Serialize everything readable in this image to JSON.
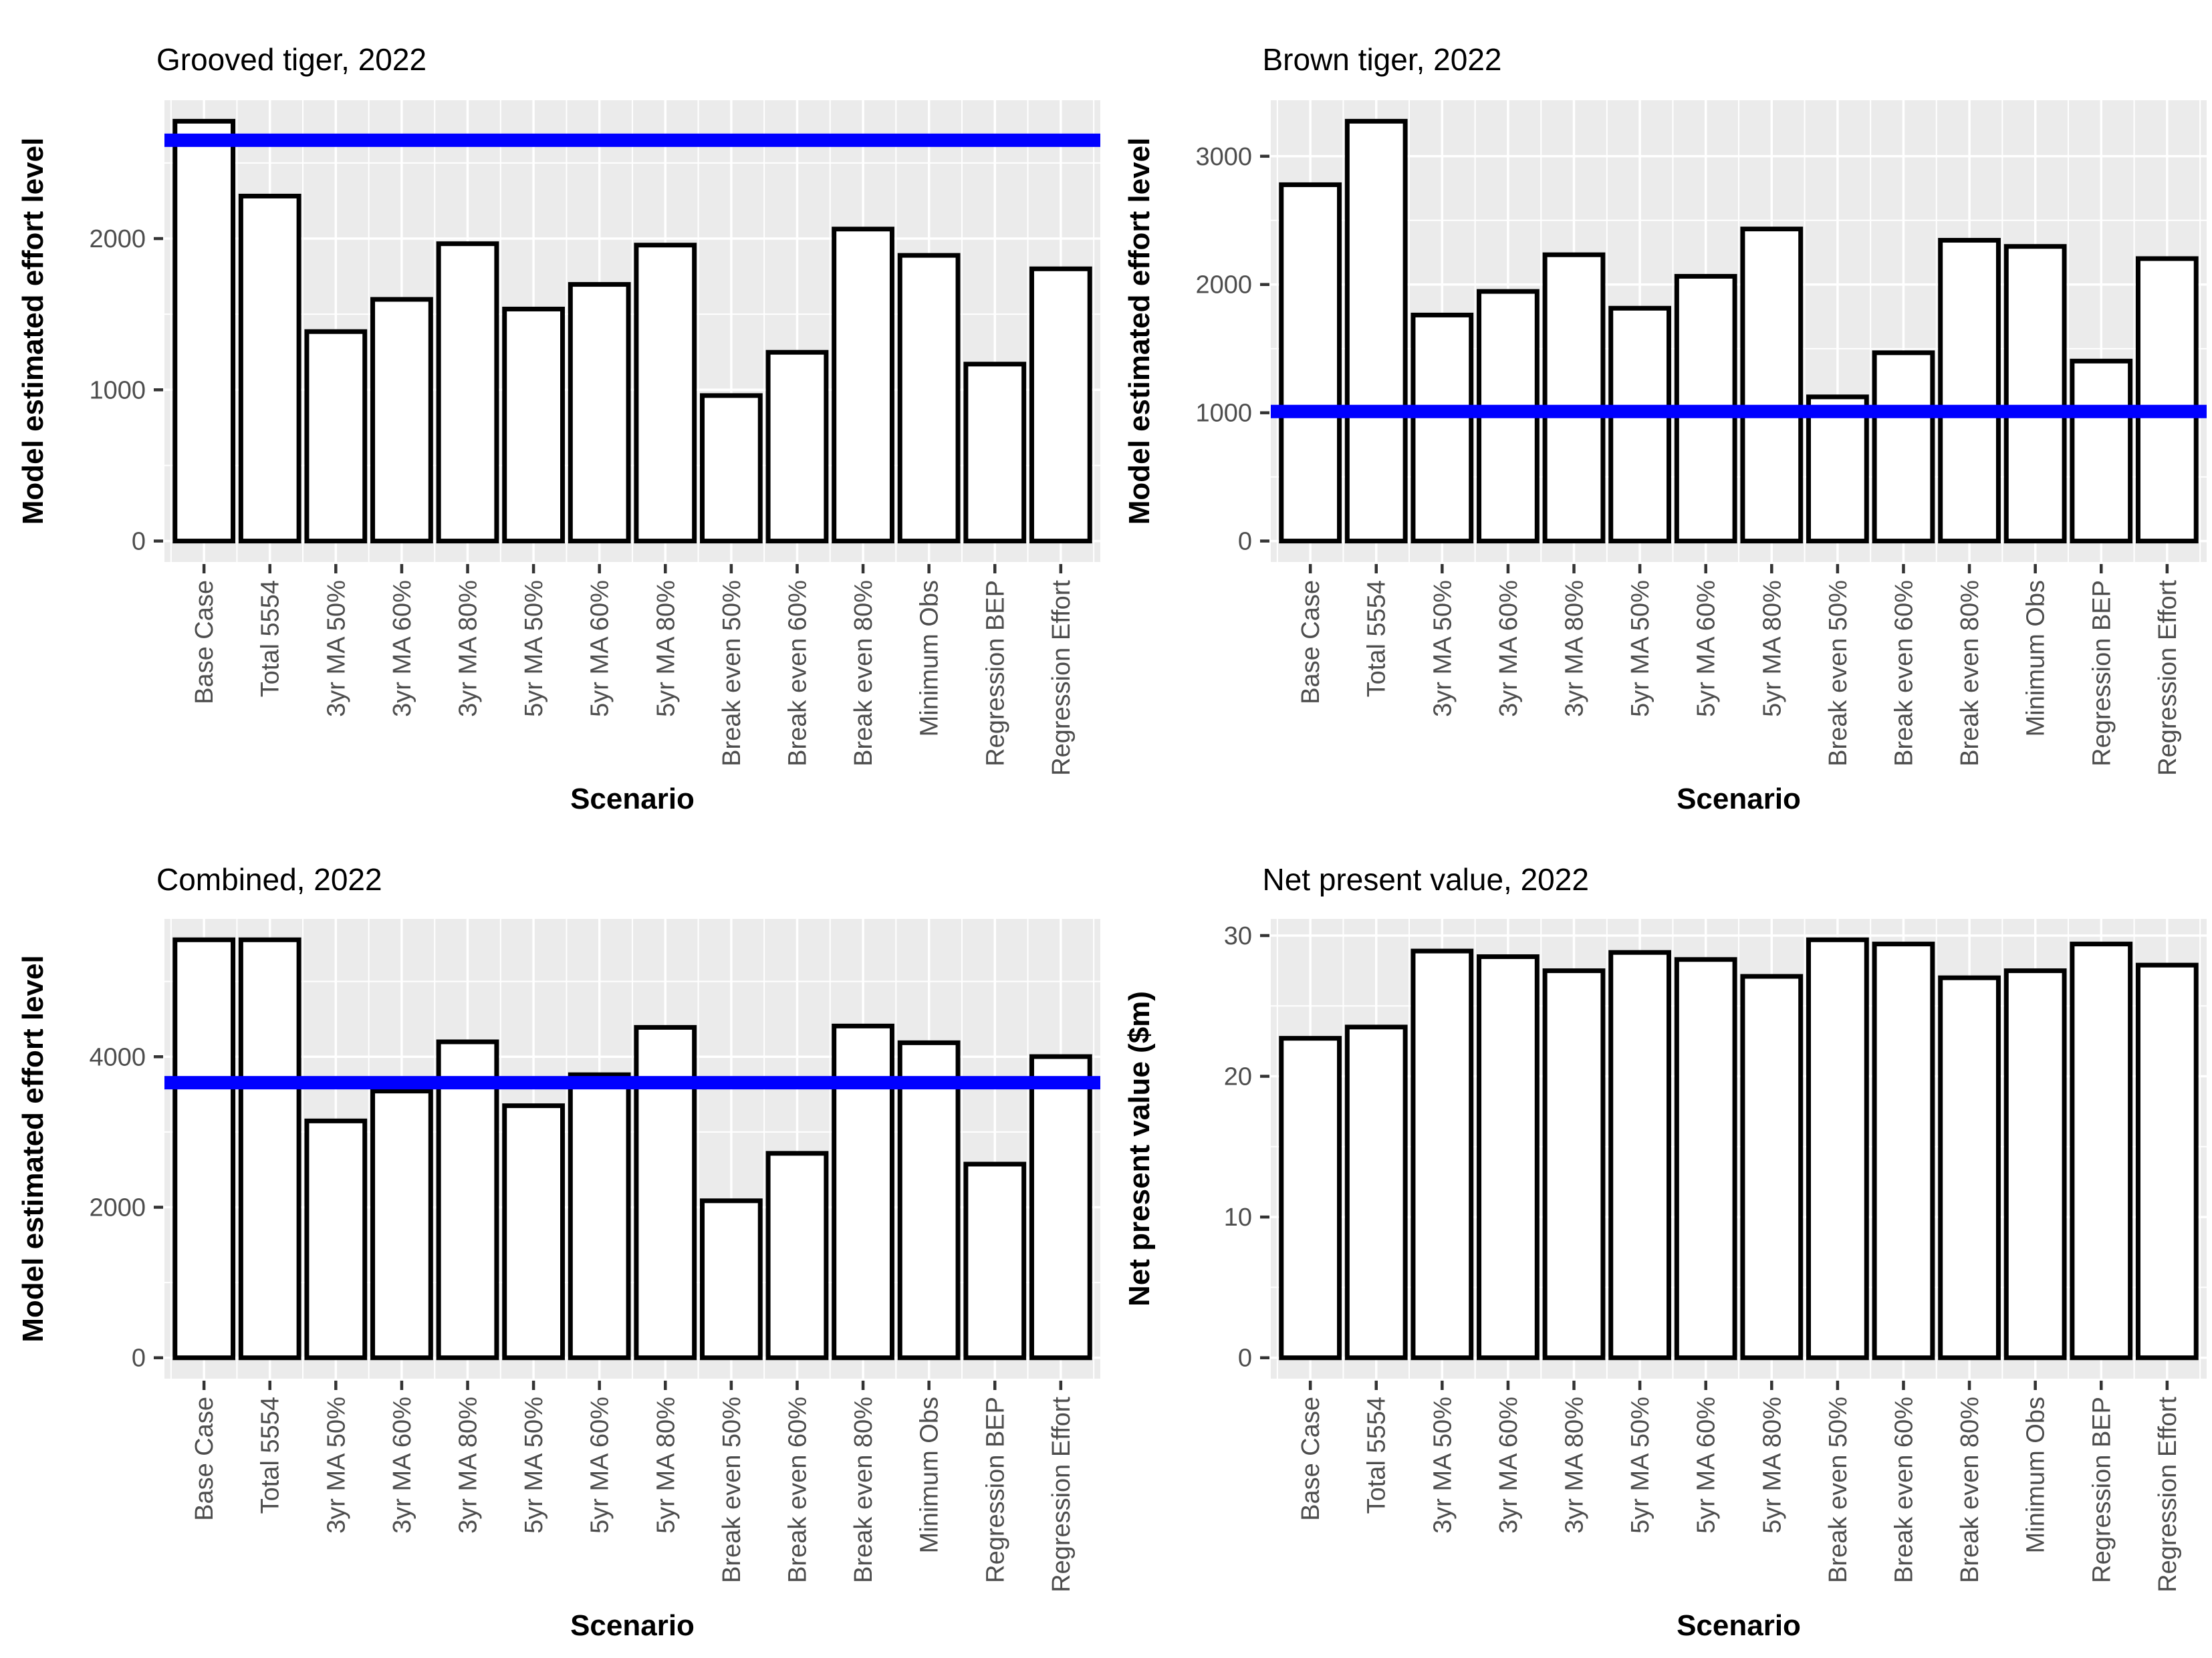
{
  "figure": {
    "year": "2022",
    "scenario_count": 14
  },
  "colors": {
    "panel_background": "#EBEBEB",
    "gridline": "#FFFFFF",
    "bar_fill": "#FFFFFF",
    "bar_stroke": "#000000",
    "reference_line": "#0000FF",
    "axis_tick": "#333333",
    "tick_label": "#4D4D4D",
    "title_text": "#000000"
  },
  "chart_data": [
    {
      "type": "bar",
      "title": "Grooved tiger, 2022",
      "xlabel": "Scenario",
      "ylabel": "Model estimated effort level",
      "categories": [
        "Base Case",
        "Total 5554",
        "3yr MA 50%",
        "3yr MA 60%",
        "3yr MA 80%",
        "5yr MA 50%",
        "5yr MA 60%",
        "5yr MA 80%",
        "Break even 50%",
        "Break even 60%",
        "Break even 80%",
        "Minimum Obs",
        "Regression BEP",
        "Regression Effort"
      ],
      "values": [
        2776,
        2281,
        1385,
        1598,
        1966,
        1534,
        1697,
        1957,
        962,
        1248,
        2063,
        1889,
        1170,
        1800
      ],
      "y_breaks": [
        0,
        1000,
        2000
      ],
      "y_minor": [
        500,
        1500,
        2500
      ],
      "hline": 2650,
      "grid": true,
      "legend": "none"
    },
    {
      "type": "bar",
      "title": "Brown tiger, 2022",
      "xlabel": "Scenario",
      "ylabel": "Model estimated effort level",
      "categories": [
        "Base Case",
        "Total 5554",
        "3yr MA 50%",
        "3yr MA 60%",
        "3yr MA 80%",
        "5yr MA 50%",
        "5yr MA 60%",
        "5yr MA 80%",
        "Break even 50%",
        "Break even 60%",
        "Break even 80%",
        "Minimum Obs",
        "Regression BEP",
        "Regression Effort"
      ],
      "values": [
        2778,
        3273,
        1762,
        1946,
        2232,
        1815,
        2064,
        2433,
        1124,
        1468,
        2345,
        2297,
        1403,
        2202
      ],
      "y_breaks": [
        0,
        1000,
        2000,
        3000
      ],
      "y_minor": [
        500,
        1500,
        2500
      ],
      "hline": 1010,
      "grid": true,
      "legend": "none"
    },
    {
      "type": "bar",
      "title": "Combined, 2022",
      "xlabel": "Scenario",
      "ylabel": "Model estimated effort level",
      "categories": [
        "Base Case",
        "Total 5554",
        "3yr MA 50%",
        "3yr MA 60%",
        "3yr MA 80%",
        "5yr MA 50%",
        "5yr MA 60%",
        "5yr MA 80%",
        "Break even 50%",
        "Break even 60%",
        "Break even 80%",
        "Minimum Obs",
        "Regression BEP",
        "Regression Effort"
      ],
      "values": [
        5554,
        5554,
        3147,
        3544,
        4198,
        3349,
        3761,
        4390,
        2086,
        2716,
        4408,
        4186,
        2573,
        4002
      ],
      "y_breaks": [
        0,
        2000,
        4000
      ],
      "y_minor": [
        1000,
        3000,
        5000
      ],
      "hline": 3655,
      "grid": true,
      "legend": "none"
    },
    {
      "type": "bar",
      "title": "Net present value, 2022",
      "xlabel": "Scenario",
      "ylabel": "Net present value ($m)",
      "categories": [
        "Base Case",
        "Total 5554",
        "3yr MA 50%",
        "3yr MA 60%",
        "3yr MA 80%",
        "5yr MA 50%",
        "5yr MA 60%",
        "5yr MA 80%",
        "Break even 50%",
        "Break even 60%",
        "Break even 80%",
        "Minimum Obs",
        "Regression BEP",
        "Regression Effort"
      ],
      "values": [
        22.7,
        23.5,
        28.9,
        28.5,
        27.5,
        28.8,
        28.3,
        27.1,
        29.7,
        29.4,
        27.0,
        27.5,
        29.4,
        27.9
      ],
      "y_breaks": [
        0,
        10,
        20,
        30
      ],
      "y_minor": [
        5,
        15,
        25
      ],
      "hline": null,
      "grid": true,
      "legend": "none"
    }
  ]
}
